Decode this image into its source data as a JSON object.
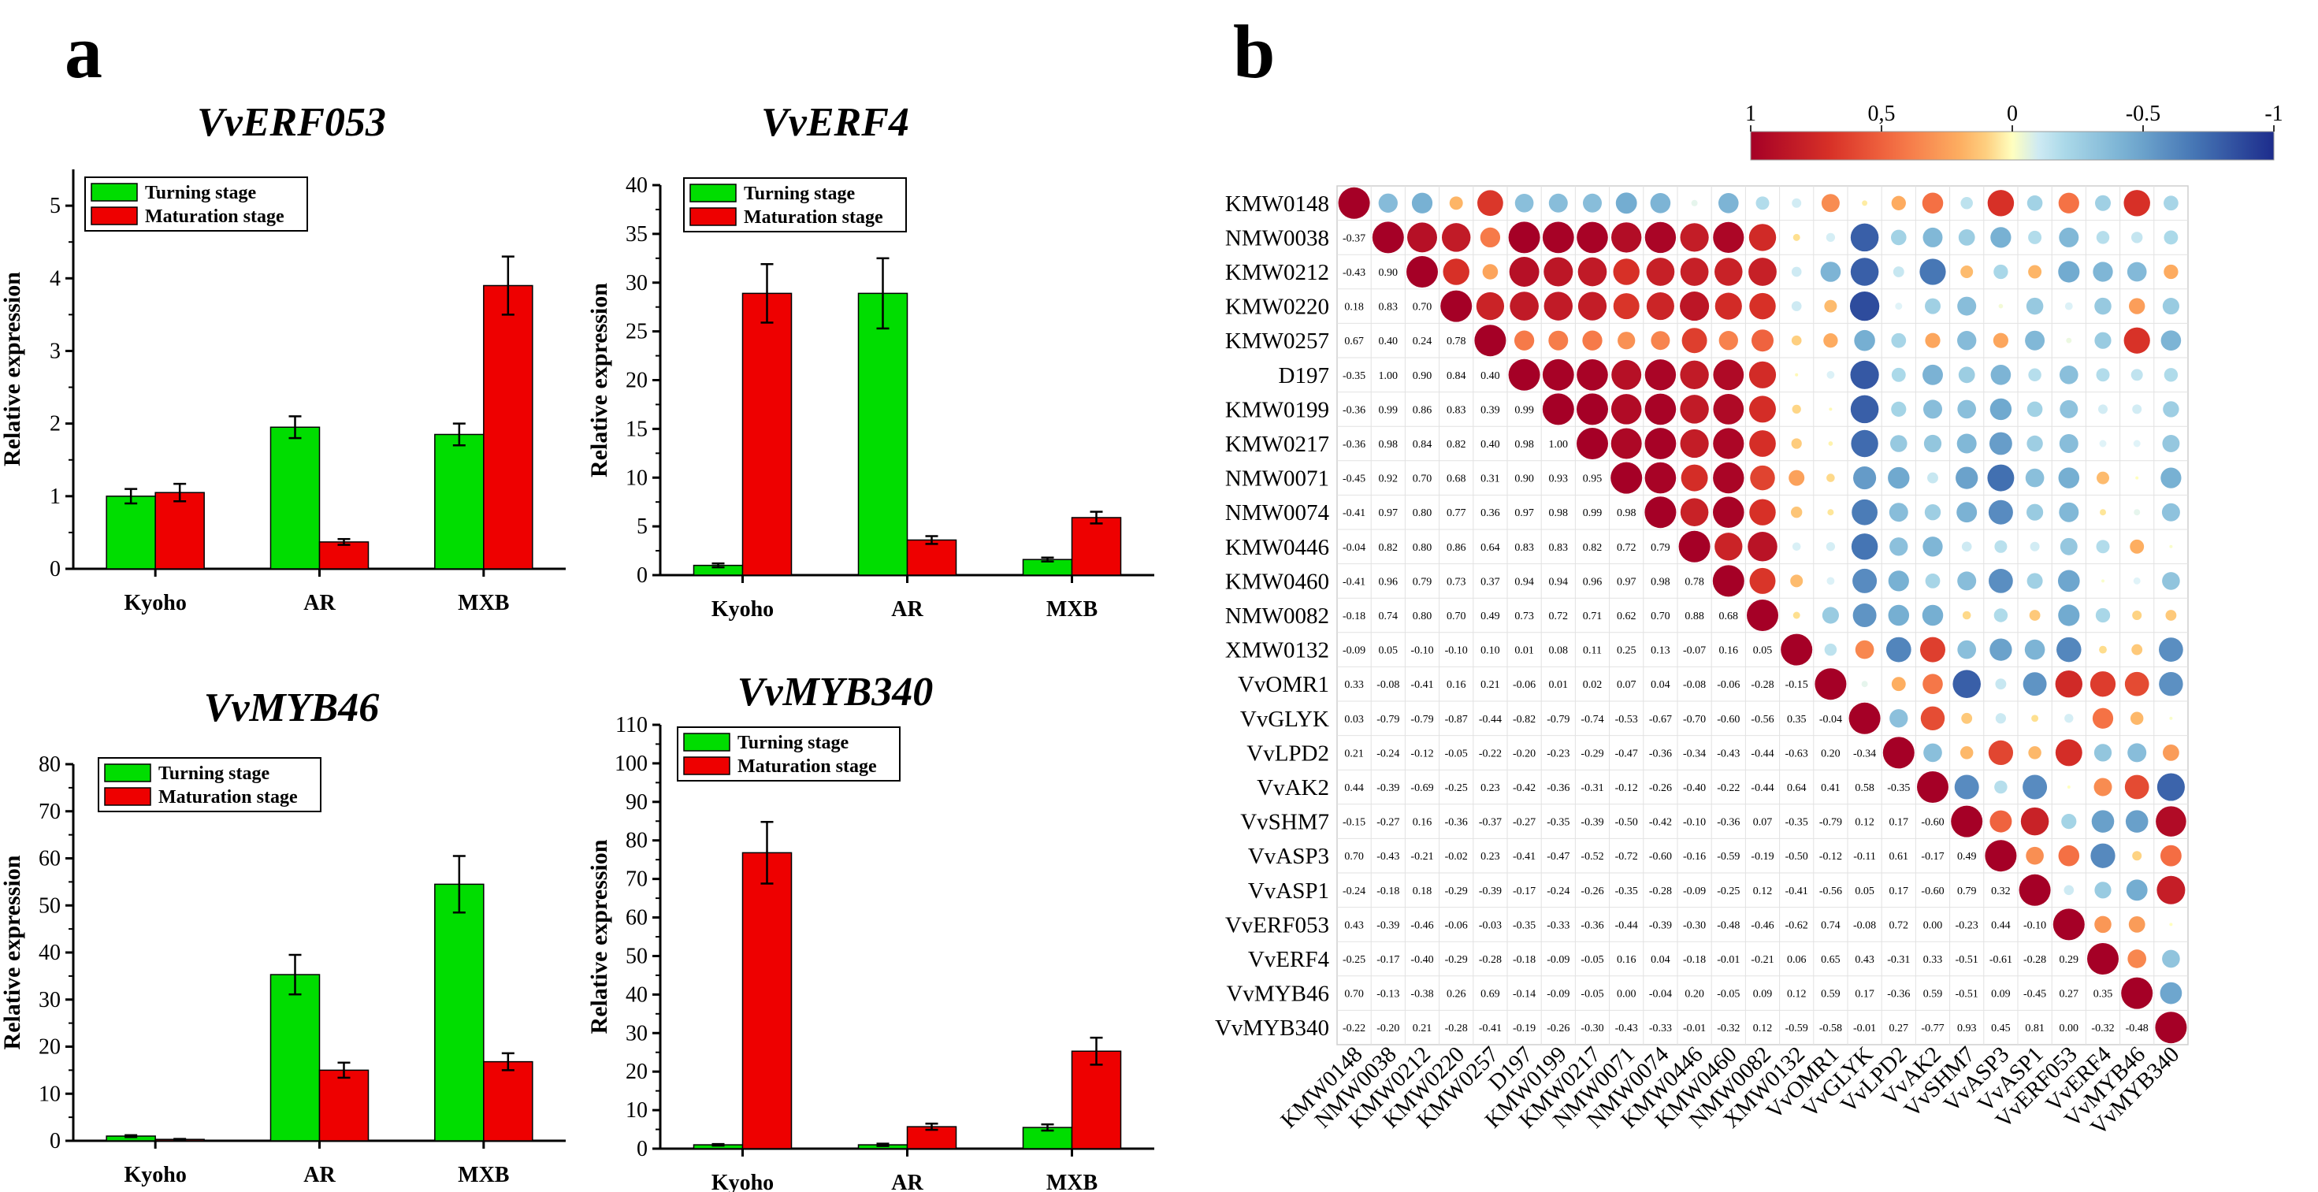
{
  "panel_labels": {
    "a": "a",
    "b": "b"
  },
  "colors": {
    "turning": "#00dd00",
    "maturation": "#ee0000",
    "neg": "#1c2c8c",
    "pos": "#a60e23"
  },
  "chart_data": [
    {
      "type": "bar",
      "title": "VvERF053",
      "xlabel": "",
      "ylabel": "Relative expression",
      "categories": [
        "Kyoho",
        "AR",
        "MXB"
      ],
      "ylim": [
        0,
        5.5
      ],
      "yticks": [
        0,
        1,
        2,
        3,
        4,
        5
      ],
      "series": [
        {
          "name": "Turning stage",
          "values": [
            1.0,
            1.95,
            1.85
          ],
          "errors": [
            0.1,
            0.15,
            0.15
          ]
        },
        {
          "name": "Maturation stage",
          "values": [
            1.05,
            0.37,
            3.9
          ],
          "errors": [
            0.12,
            0.04,
            0.4
          ]
        }
      ]
    },
    {
      "type": "bar",
      "title": "VvERF4",
      "xlabel": "",
      "ylabel": "Relative expression",
      "categories": [
        "Kyoho",
        "AR",
        "MXB"
      ],
      "ylim": [
        0,
        40
      ],
      "yticks": [
        0,
        5,
        10,
        15,
        20,
        25,
        30,
        35,
        40
      ],
      "series": [
        {
          "name": "Turning stage",
          "values": [
            1.0,
            28.9,
            1.6
          ],
          "errors": [
            0.2,
            3.6,
            0.2
          ]
        },
        {
          "name": "Maturation stage",
          "values": [
            28.9,
            3.6,
            5.9
          ],
          "errors": [
            3.0,
            0.4,
            0.6
          ]
        }
      ]
    },
    {
      "type": "bar",
      "title": "VvMYB46",
      "xlabel": "",
      "ylabel": "Relative expression",
      "categories": [
        "Kyoho",
        "AR",
        "MXB"
      ],
      "ylim": [
        0,
        80
      ],
      "yticks": [
        0,
        10,
        20,
        30,
        40,
        50,
        60,
        70,
        80
      ],
      "series": [
        {
          "name": "Turning stage",
          "values": [
            1.0,
            35.3,
            54.5
          ],
          "errors": [
            0.2,
            4.2,
            6.0
          ]
        },
        {
          "name": "Maturation stage",
          "values": [
            0.3,
            15.0,
            16.8
          ],
          "errors": [
            0.1,
            1.6,
            1.8
          ]
        }
      ]
    },
    {
      "type": "bar",
      "title": "VvMYB340",
      "xlabel": "",
      "ylabel": "Relative expression",
      "categories": [
        "Kyoho",
        "AR",
        "MXB"
      ],
      "ylim": [
        0,
        110
      ],
      "yticks": [
        0,
        10,
        20,
        30,
        40,
        50,
        60,
        70,
        80,
        90,
        100,
        110
      ],
      "series": [
        {
          "name": "Turning stage",
          "values": [
            1.0,
            1.0,
            5.5
          ],
          "errors": [
            0.2,
            0.3,
            0.8
          ]
        },
        {
          "name": "Maturation stage",
          "values": [
            76.8,
            5.7,
            25.3
          ],
          "errors": [
            8.0,
            0.8,
            3.5
          ]
        }
      ]
    },
    {
      "type": "heatmap",
      "title": "",
      "labels": [
        "KMW0148",
        "NMW0038",
        "KMW0212",
        "KMW0220",
        "KMW0257",
        "D197",
        "KMW0199",
        "KMW0217",
        "NMW0071",
        "NMW0074",
        "KMW0446",
        "KMW0460",
        "NMW0082",
        "XMW0132",
        "VvOMR1",
        "VvGLYK",
        "VvLPD2",
        "VvAK2",
        "VvSHM7",
        "VvASP3",
        "VvASP1",
        "VvERF053",
        "VvERF4",
        "VvMYB46",
        "VvMYB340"
      ],
      "colorbar": {
        "range": [
          1,
          -1
        ],
        "ticks": [
          "1",
          "0,5",
          "0",
          "-0.5",
          "-1"
        ]
      },
      "lower": [
        [],
        [
          "-0.37"
        ],
        [
          "-0.43",
          "0.90"
        ],
        [
          "0.18",
          "0.83",
          "0.70"
        ],
        [
          "0.67",
          "0.40",
          "0.24",
          "0.78"
        ],
        [
          "-0.35",
          "1.00",
          "0.90",
          "0.84",
          "0.40"
        ],
        [
          "-0.36",
          "0.99",
          "0.86",
          "0.83",
          "0.39",
          "0.99"
        ],
        [
          "-0.36",
          "0.98",
          "0.84",
          "0.82",
          "0.40",
          "0.98",
          "1.00"
        ],
        [
          "-0.45",
          "0.92",
          "0.70",
          "0.68",
          "0.31",
          "0.90",
          "0.93",
          "0.95"
        ],
        [
          "-0.41",
          "0.97",
          "0.80",
          "0.77",
          "0.36",
          "0.97",
          "0.98",
          "0.99",
          "0.98"
        ],
        [
          "-0.04",
          "0.82",
          "0.80",
          "0.86",
          "0.64",
          "0.83",
          "0.83",
          "0.82",
          "0.72",
          "0.79"
        ],
        [
          "-0.41",
          "0.96",
          "0.79",
          "0.73",
          "0.37",
          "0.94",
          "0.94",
          "0.96",
          "0.97",
          "0.98",
          "0.78"
        ],
        [
          "-0.18",
          "0.74",
          "0.80",
          "0.70",
          "0.49",
          "0.73",
          "0.72",
          "0.71",
          "0.62",
          "0.70",
          "0.88",
          "0.68"
        ],
        [
          "-0.09",
          "0.05",
          "-0.10",
          "-0.10",
          "0.10",
          "0.01",
          "0.08",
          "0.11",
          "0.25",
          "0.13",
          "-0.07",
          "0.16",
          "0.05"
        ],
        [
          "0.33",
          "-0.08",
          "-0.41",
          "0.16",
          "0.21",
          "-0.06",
          "0.01",
          "0.02",
          "0.07",
          "0.04",
          "-0.08",
          "-0.06",
          "-0.28",
          "-0.15"
        ],
        [
          "0.03",
          "-0.79",
          "-0.79",
          "-0.87",
          "-0.44",
          "-0.82",
          "-0.79",
          "-0.74",
          "-0.53",
          "-0.67",
          "-0.70",
          "-0.60",
          "-0.56",
          "0.35",
          "-0.04"
        ],
        [
          "0.21",
          "-0.24",
          "-0.12",
          "-0.05",
          "-0.22",
          "-0.20",
          "-0.23",
          "-0.29",
          "-0.47",
          "-0.36",
          "-0.34",
          "-0.43",
          "-0.44",
          "-0.63",
          "0.20",
          "-0.34"
        ],
        [
          "0.44",
          "-0.39",
          "-0.69",
          "-0.25",
          "0.23",
          "-0.42",
          "-0.36",
          "-0.31",
          "-0.12",
          "-0.26",
          "-0.40",
          "-0.22",
          "-0.44",
          "0.64",
          "0.41",
          "0.58",
          "-0.35"
        ],
        [
          "-0.15",
          "-0.27",
          "0.16",
          "-0.36",
          "-0.37",
          "-0.27",
          "-0.35",
          "-0.39",
          "-0.50",
          "-0.42",
          "-0.10",
          "-0.36",
          "0.07",
          "-0.35",
          "-0.79",
          "0.12",
          "0.17",
          "-0.60"
        ],
        [
          "0.70",
          "-0.43",
          "-0.21",
          "-0.02",
          "0.23",
          "-0.41",
          "-0.47",
          "-0.52",
          "-0.72",
          "-0.60",
          "-0.16",
          "-0.59",
          "-0.19",
          "-0.50",
          "-0.12",
          "-0.11",
          "0.61",
          "-0.17",
          "0.49"
        ],
        [
          "-0.24",
          "-0.18",
          "0.18",
          "-0.29",
          "-0.39",
          "-0.17",
          "-0.24",
          "-0.26",
          "-0.35",
          "-0.28",
          "-0.09",
          "-0.25",
          "0.12",
          "-0.41",
          "-0.56",
          "0.05",
          "0.17",
          "-0.60",
          "0.79",
          "0.32"
        ],
        [
          "0.43",
          "-0.39",
          "-0.46",
          "-0.06",
          "-0.03",
          "-0.35",
          "-0.33",
          "-0.36",
          "-0.44",
          "-0.39",
          "-0.30",
          "-0.48",
          "-0.46",
          "-0.62",
          "0.74",
          "-0.08",
          "0.72",
          "0.00",
          "-0.23",
          "0.44",
          "-0.10"
        ],
        [
          "-0.25",
          "-0.17",
          "-0.40",
          "-0.29",
          "-0.28",
          "-0.18",
          "-0.09",
          "-0.05",
          "0.16",
          "0.04",
          "-0.18",
          "-0.01",
          "-0.21",
          "0.06",
          "0.65",
          "0.43",
          "-0.31",
          "0.33",
          "-0.51",
          "-0.61",
          "-0.28",
          "0.29"
        ],
        [
          "0.70",
          "-0.13",
          "-0.38",
          "0.26",
          "0.69",
          "-0.14",
          "-0.09",
          "-0.05",
          "0.00",
          "-0.04",
          "0.20",
          "-0.05",
          "0.09",
          "0.12",
          "0.59",
          "0.17",
          "-0.36",
          "0.59",
          "-0.51",
          "0.09",
          "-0.45",
          "0.27",
          "0.35"
        ],
        [
          "-0.22",
          "-0.20",
          "0.21",
          "-0.28",
          "-0.41",
          "-0.19",
          "-0.26",
          "-0.30",
          "-0.43",
          "-0.33",
          "-0.01",
          "-0.32",
          "0.12",
          "-0.59",
          "-0.58",
          "-0.01",
          "0.27",
          "-0.77",
          "0.93",
          "0.45",
          "0.81",
          "0.00",
          "-0.32",
          "-0.48"
        ]
      ]
    }
  ]
}
